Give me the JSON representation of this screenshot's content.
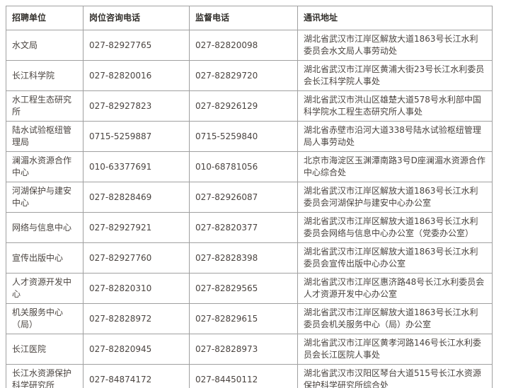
{
  "table": {
    "columns": [
      "招聘单位",
      "岗位咨询电话",
      "监督电话",
      "通讯地址"
    ],
    "rows": [
      {
        "unit": "水文局",
        "consult_phone": "027-82927765",
        "supervise_phone": "027-82820098",
        "address": "湖北省武汉市江岸区解放大道1863号长江水利委员会水文局人事劳动处"
      },
      {
        "unit": "长江科学院",
        "consult_phone": "027-82820016",
        "supervise_phone": "027-82829720",
        "address": "湖北省武汉市江岸区黄浦大街23号长江水利委员会长江科学院人事处"
      },
      {
        "unit": "水工程生态研究所",
        "consult_phone": "027-82927823",
        "supervise_phone": "027-82926129",
        "address": "湖北省武汉市洪山区雄楚大道578号水利部中国科学院水工程生态研究所人事处"
      },
      {
        "unit": "陆水试验枢纽管理局",
        "consult_phone": "0715-5259887",
        "supervise_phone": "0715-5259840",
        "address": "湖北省赤壁市沿河大道338号陆水试验枢纽管理局人事劳动处"
      },
      {
        "unit": "澜湄水资源合作中心",
        "consult_phone": "010-63377691",
        "supervise_phone": "010-68781056",
        "address": "北京市海淀区玉渊潭南路3号D座澜湄水资源合作中心综合处"
      },
      {
        "unit": "河湖保护与建安中心",
        "consult_phone": "027-82828469",
        "supervise_phone": "027-82926087",
        "address": "湖北省武汉市江岸区解放大道1863号长江水利委员会河湖保护与建安中心办公室"
      },
      {
        "unit": "网络与信息中心",
        "consult_phone": "027-82927921",
        "supervise_phone": "027-82820377",
        "address": "湖北省武汉市江岸区解放大道1863号长江水利委员会网络与信息中心办公室（党委办公室）"
      },
      {
        "unit": "宣传出版中心",
        "consult_phone": "027-82927760",
        "supervise_phone": "027-82828398",
        "address": "湖北省武汉市江岸区解放大道1863号长江水利委员会宣传出版中心办公室"
      },
      {
        "unit": "人才资源开发中心",
        "consult_phone": "027-82820310",
        "supervise_phone": "027-82829565",
        "address": "湖北省武汉市江岸区惠济路48号长江水利委员会人才资源开发中心办公室"
      },
      {
        "unit": "机关服务中心（局）",
        "consult_phone": "027-82828972",
        "supervise_phone": "027-82829615",
        "address": "湖北省武汉市江岸区解放大道1863号长江水利委员会机关服务中心（局）办公室"
      },
      {
        "unit": "长江医院",
        "consult_phone": "027-82820945",
        "supervise_phone": "027-82828973",
        "address": "湖北省武汉市江岸区黄孝河路146号长江水利委员会长江医院人事处"
      },
      {
        "unit": "长江水资源保护科学研究所",
        "consult_phone": "027-84874172",
        "supervise_phone": "027-84450112",
        "address": "湖北省武汉市汉阳区琴台大道515号长江水资源保护科学研究所综合处"
      }
    ]
  },
  "colors": {
    "border": "#a0a0a0",
    "outer_border": "#8c8c8c",
    "header_text": "#33302c",
    "body_text": "#4a4440",
    "background": "#ffffff"
  }
}
